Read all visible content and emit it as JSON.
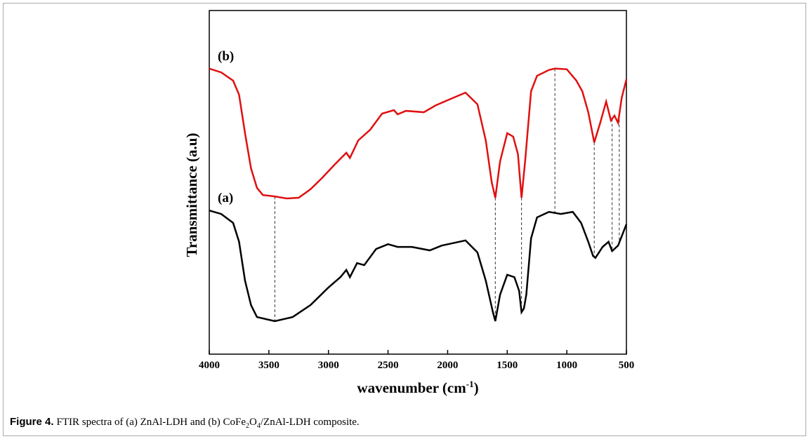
{
  "chart_data": {
    "type": "line",
    "xlabel": [
      "wavenumber (cm",
      "-1",
      ")"
    ],
    "ylabel": "Transmittance (a.u)",
    "xlim": [
      4000,
      500
    ],
    "xticks": [
      4000,
      3500,
      3000,
      2500,
      2000,
      1500,
      1000,
      500
    ],
    "ylim": [
      0,
      100
    ],
    "reference_lines": [
      3450,
      1600,
      1380,
      1100,
      770,
      620,
      560
    ],
    "series": [
      {
        "name": "(a)",
        "color": "#000000",
        "x": [
          4000,
          3900,
          3800,
          3750,
          3700,
          3650,
          3600,
          3450,
          3300,
          3150,
          3000,
          2900,
          2850,
          2820,
          2760,
          2700,
          2600,
          2500,
          2420,
          2300,
          2150,
          2050,
          1850,
          1750,
          1680,
          1620,
          1600,
          1560,
          1500,
          1440,
          1400,
          1380,
          1360,
          1340,
          1300,
          1250,
          1150,
          1050,
          950,
          880,
          820,
          780,
          760,
          700,
          650,
          620,
          570,
          500
        ],
        "values": [
          41.8,
          40.8,
          38.2,
          32.7,
          21.4,
          14.3,
          10.8,
          9.6,
          10.8,
          14.3,
          19.4,
          22.4,
          24.5,
          22.4,
          26.5,
          25.9,
          30.6,
          32.0,
          31.2,
          31.2,
          30.2,
          31.6,
          33.1,
          29.6,
          21.4,
          12.2,
          9.6,
          17.3,
          23.1,
          22.4,
          18.4,
          12.2,
          13.3,
          17.3,
          33.7,
          39.8,
          41.4,
          40.8,
          41.4,
          38.2,
          32.7,
          28.6,
          28.0,
          31.2,
          32.7,
          30.0,
          31.6,
          37.8
        ]
      },
      {
        "name": "(b)",
        "color": "#e01010",
        "x": [
          4000,
          3900,
          3800,
          3750,
          3700,
          3650,
          3600,
          3550,
          3450,
          3350,
          3250,
          3150,
          3050,
          2950,
          2850,
          2820,
          2750,
          2650,
          2550,
          2450,
          2420,
          2350,
          2200,
          2100,
          2000,
          1850,
          1750,
          1680,
          1630,
          1600,
          1560,
          1500,
          1450,
          1410,
          1380,
          1350,
          1300,
          1250,
          1150,
          1100,
          1000,
          920,
          870,
          820,
          770,
          720,
          670,
          630,
          600,
          570,
          540,
          500
        ],
        "values": [
          83.1,
          82.0,
          79.6,
          75.5,
          64.3,
          54.1,
          48.4,
          46.3,
          45.9,
          45.3,
          45.5,
          48.0,
          51.4,
          55.1,
          58.6,
          57.1,
          62.2,
          65.3,
          70.0,
          71.0,
          69.8,
          70.8,
          70.4,
          72.4,
          73.9,
          76.1,
          72.7,
          62.2,
          50.0,
          45.5,
          56.1,
          64.3,
          63.3,
          58.2,
          45.5,
          56.1,
          76.5,
          81.0,
          82.7,
          83.1,
          82.9,
          79.6,
          76.5,
          70.4,
          61.6,
          67.3,
          73.5,
          68.0,
          69.4,
          67.3,
          74.5,
          80.0
        ]
      }
    ]
  },
  "caption": {
    "label": "Figure 4.",
    "parts": [
      "FTIR spectra of (a) ZnAl-LDH and (b) CoFe",
      "2",
      "O",
      "4",
      "/ZnAl-LDH composite."
    ]
  }
}
